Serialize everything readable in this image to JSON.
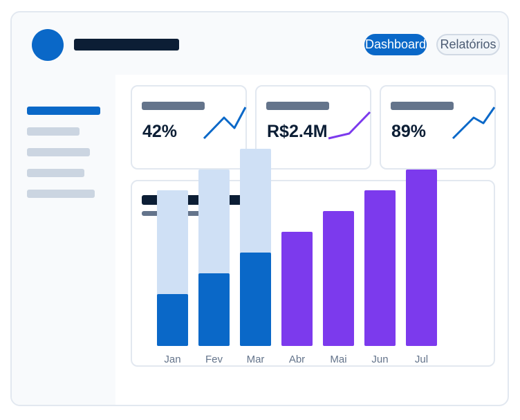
{
  "header": {
    "tabs": [
      {
        "label": "Dashboard",
        "active": true
      },
      {
        "label": "Relatórios",
        "active": false
      }
    ]
  },
  "sidebar": {
    "items": 5,
    "active_index": 0
  },
  "cards": [
    {
      "value": "42%",
      "trend": [
        0,
        2,
        1,
        3
      ]
    },
    {
      "value": "R$2.4M",
      "trend": [
        0,
        0.3,
        2
      ]
    },
    {
      "value": "89%",
      "trend": [
        0,
        2,
        1.4,
        3
      ]
    }
  ],
  "colors": {
    "primary": "#0a68c8",
    "accent": "#7c3aed",
    "light": "#cfe0f5",
    "dark": "#0c1e35",
    "muted": "#64748b"
  },
  "chart_data": {
    "type": "bar",
    "categories": [
      "Jan",
      "Fev",
      "Mar",
      "Abr",
      "Mai",
      "Jun",
      "Jul"
    ],
    "series": [
      {
        "values": [
          25,
          35,
          45,
          55,
          65,
          75,
          85
        ]
      },
      {
        "values": [
          50,
          50,
          50,
          null,
          null,
          null,
          null
        ]
      }
    ],
    "highlight_from_index": 3,
    "ylim": [
      0,
      100
    ],
    "grid": false
  }
}
